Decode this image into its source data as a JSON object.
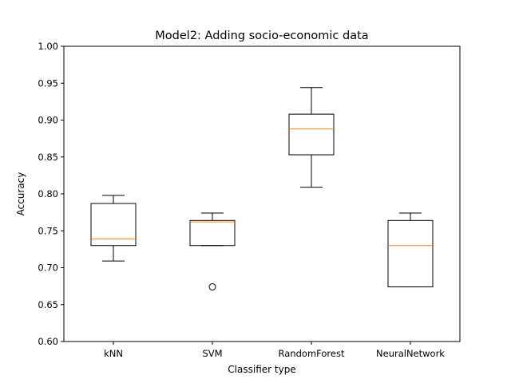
{
  "chart_data": {
    "type": "boxplot",
    "title": "Model2: Adding socio-economic data",
    "xlabel": "Classifier type",
    "ylabel": "Accuracy",
    "ylim": [
      0.6,
      1.0
    ],
    "yticks": [
      "0.60",
      "0.65",
      "0.70",
      "0.75",
      "0.80",
      "0.85",
      "0.90",
      "0.95",
      "1.00"
    ],
    "grid": false,
    "colors": {
      "box": "#000000",
      "median": "#ff7f0e"
    },
    "categories": [
      "kNN",
      "SVM",
      "RandomForest",
      "NeuralNetwork"
    ],
    "boxes": [
      {
        "whisker_low": 0.709,
        "q1": 0.73,
        "median": 0.739,
        "q3": 0.787,
        "whisker_high": 0.798,
        "outliers": []
      },
      {
        "whisker_low": 0.73,
        "q1": 0.73,
        "median": 0.762,
        "q3": 0.764,
        "whisker_high": 0.774,
        "outliers": [
          0.674
        ]
      },
      {
        "whisker_low": 0.809,
        "q1": 0.853,
        "median": 0.888,
        "q3": 0.908,
        "whisker_high": 0.944,
        "outliers": []
      },
      {
        "whisker_low": 0.674,
        "q1": 0.674,
        "median": 0.73,
        "q3": 0.764,
        "whisker_high": 0.774,
        "outliers": []
      }
    ]
  }
}
